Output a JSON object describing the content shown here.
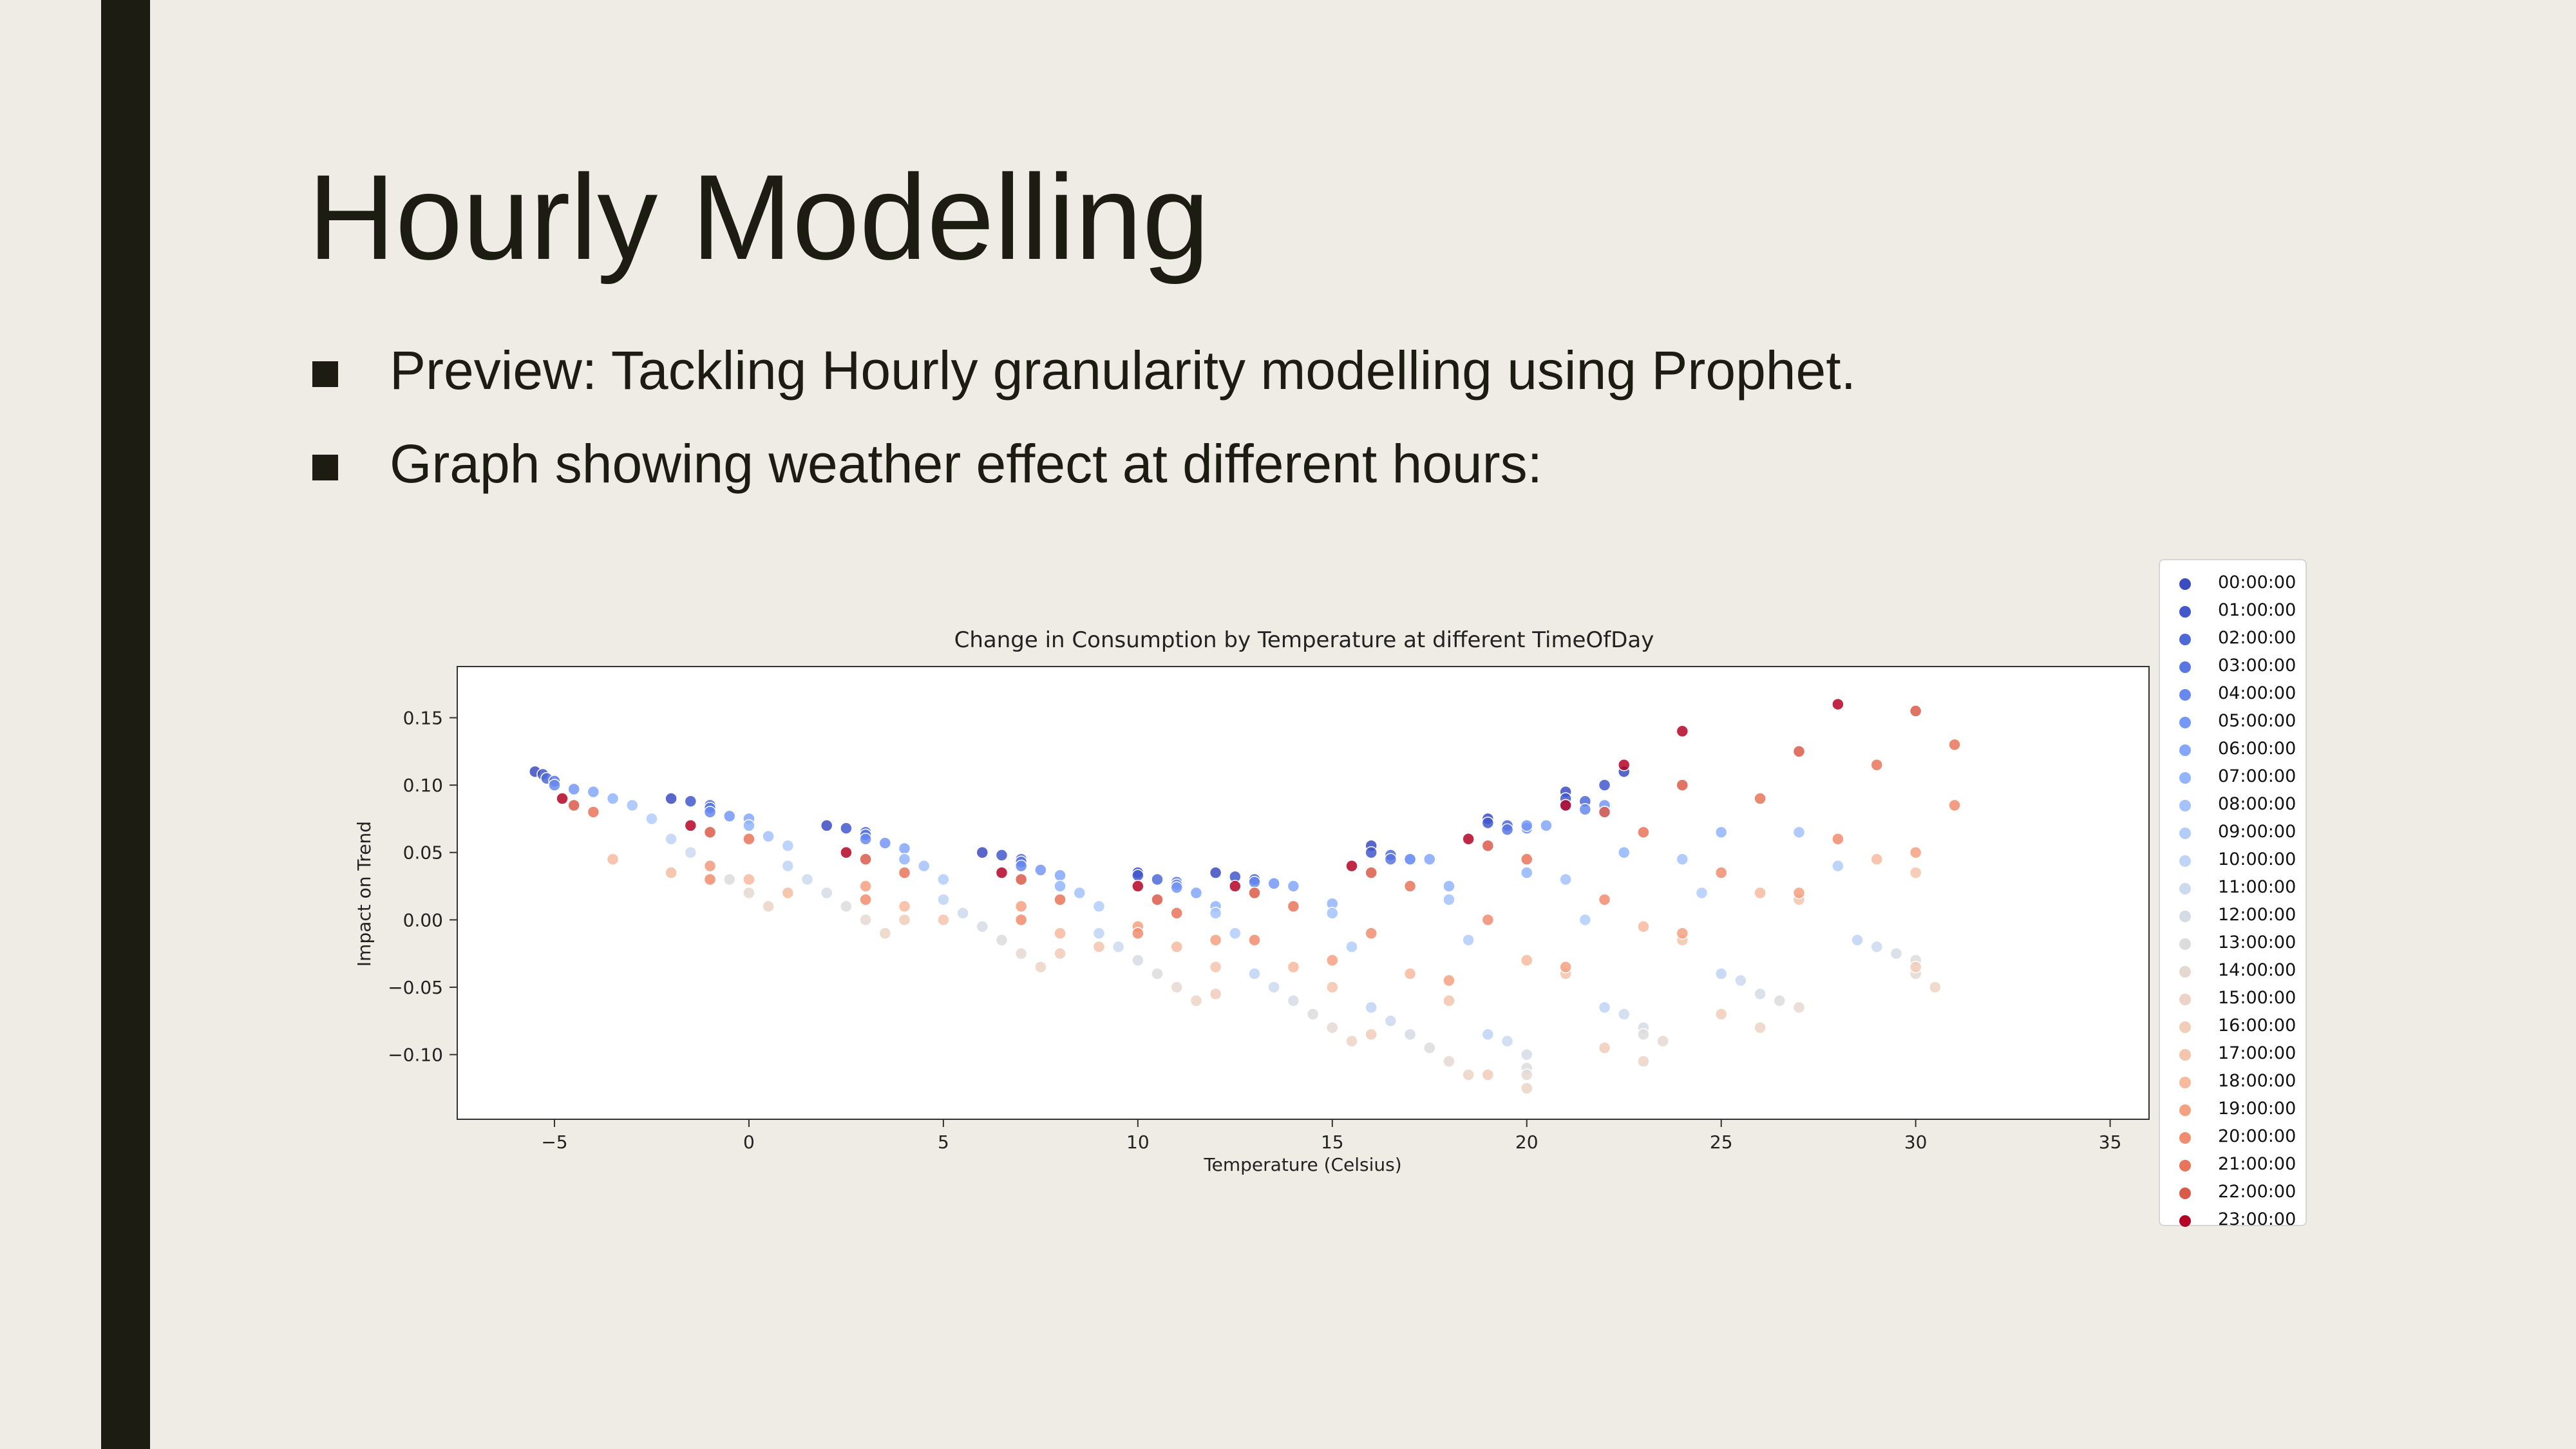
{
  "slide": {
    "title": "Hourly Modelling",
    "bullets": [
      "Preview: Tackling Hourly granularity modelling using Prophet.",
      "Graph showing weather effect at different hours:"
    ],
    "colors": {
      "background": "#EEECE4",
      "accent_bar": "#1C1C12",
      "text": "#1C1C12"
    }
  },
  "chart_data": {
    "type": "scatter",
    "title": "Change in Consumption by Temperature at different TimeOfDay",
    "xlabel": "Temperature (Celsius)",
    "ylabel": "Impact on Trend",
    "xlim": [
      -7.5,
      36
    ],
    "ylim": [
      -0.148,
      0.188
    ],
    "xticks": [
      -5,
      0,
      5,
      10,
      15,
      20,
      25,
      30,
      35
    ],
    "xtick_labels": [
      "−5",
      "0",
      "5",
      "10",
      "15",
      "20",
      "25",
      "30",
      "35"
    ],
    "yticks": [
      -0.1,
      -0.05,
      0.0,
      0.05,
      0.1,
      0.15
    ],
    "ytick_labels": [
      "−0.10",
      "−0.05",
      "0.00",
      "0.05",
      "0.10",
      "0.15"
    ],
    "grid": false,
    "legend_position": "outside-right",
    "series": [
      {
        "name": "00:00:00",
        "color": "#3B4CC0",
        "x": [
          -5.5,
          -2,
          2,
          6,
          10,
          12,
          16,
          19,
          21,
          22.5
        ],
        "y": [
          0.11,
          0.09,
          0.07,
          0.05,
          0.035,
          0.035,
          0.055,
          0.075,
          0.095,
          0.11
        ]
      },
      {
        "name": "01:00:00",
        "color": "#4358CB",
        "x": [
          -5.3,
          -1.5,
          2.5,
          6.5,
          10,
          12.5,
          16,
          19,
          21,
          22
        ],
        "y": [
          0.108,
          0.088,
          0.068,
          0.048,
          0.033,
          0.032,
          0.05,
          0.072,
          0.09,
          0.1
        ]
      },
      {
        "name": "02:00:00",
        "color": "#4E68D8",
        "x": [
          -5.2,
          -1,
          3,
          7,
          10.5,
          13,
          16.5,
          19.5,
          21.5
        ],
        "y": [
          0.105,
          0.085,
          0.065,
          0.045,
          0.03,
          0.03,
          0.048,
          0.07,
          0.088
        ]
      },
      {
        "name": "03:00:00",
        "color": "#5977E3",
        "x": [
          -5,
          -1,
          3,
          7,
          11,
          13,
          16.5,
          19.5,
          21
        ],
        "y": [
          0.103,
          0.083,
          0.063,
          0.043,
          0.028,
          0.03,
          0.045,
          0.067,
          0.085
        ]
      },
      {
        "name": "04:00:00",
        "color": "#6788EE",
        "x": [
          -5,
          -1,
          3,
          7,
          11,
          13,
          17,
          20,
          21.5
        ],
        "y": [
          0.1,
          0.08,
          0.06,
          0.04,
          0.026,
          0.028,
          0.045,
          0.068,
          0.082
        ]
      },
      {
        "name": "05:00:00",
        "color": "#7597F6",
        "x": [
          -4.5,
          -0.5,
          3.5,
          7.5,
          11,
          13.5,
          17,
          20,
          22
        ],
        "y": [
          0.097,
          0.077,
          0.057,
          0.037,
          0.024,
          0.027,
          0.045,
          0.07,
          0.085
        ]
      },
      {
        "name": "06:00:00",
        "color": "#84A7FC",
        "x": [
          -4,
          0,
          4,
          8,
          11.5,
          14,
          17.5,
          20.5,
          22
        ],
        "y": [
          0.095,
          0.075,
          0.053,
          0.033,
          0.02,
          0.025,
          0.045,
          0.07,
          0.08
        ]
      },
      {
        "name": "07:00:00",
        "color": "#93B5FE",
        "x": [
          -3.5,
          0,
          4,
          8,
          12,
          15,
          18,
          20,
          22.5,
          25
        ],
        "y": [
          0.09,
          0.07,
          0.045,
          0.025,
          0.01,
          0.012,
          0.025,
          0.035,
          0.05,
          0.065
        ]
      },
      {
        "name": "08:00:00",
        "color": "#A3C2FE",
        "x": [
          -3,
          0.5,
          4.5,
          8.5,
          12,
          15,
          18,
          21,
          24,
          27
        ],
        "y": [
          0.085,
          0.062,
          0.04,
          0.02,
          0.005,
          0.005,
          0.015,
          0.03,
          0.045,
          0.065
        ]
      },
      {
        "name": "09:00:00",
        "color": "#B2CCFB",
        "x": [
          -2.5,
          1,
          5,
          9,
          12.5,
          15.5,
          18.5,
          21.5,
          24.5,
          28
        ],
        "y": [
          0.075,
          0.055,
          0.03,
          0.01,
          -0.01,
          -0.02,
          -0.015,
          0.0,
          0.02,
          0.04
        ]
      },
      {
        "name": "10:00:00",
        "color": "#C0D4F5",
        "x": [
          -2,
          1,
          5,
          9,
          13,
          16,
          19,
          22,
          25,
          28.5
        ],
        "y": [
          0.06,
          0.04,
          0.015,
          -0.01,
          -0.04,
          -0.065,
          -0.085,
          -0.065,
          -0.04,
          -0.015
        ]
      },
      {
        "name": "11:00:00",
        "color": "#CCD9EE",
        "x": [
          -1.5,
          1.5,
          5.5,
          9.5,
          13.5,
          16.5,
          19.5,
          22.5,
          25.5,
          29
        ],
        "y": [
          0.05,
          0.03,
          0.005,
          -0.02,
          -0.05,
          -0.075,
          -0.09,
          -0.07,
          -0.045,
          -0.02
        ]
      },
      {
        "name": "12:00:00",
        "color": "#D5DBE5",
        "x": [
          -1,
          2,
          6,
          10,
          14,
          17,
          20,
          23,
          26,
          29.5
        ],
        "y": [
          0.04,
          0.02,
          -0.005,
          -0.03,
          -0.06,
          -0.085,
          -0.1,
          -0.08,
          -0.055,
          -0.025
        ]
      },
      {
        "name": "13:00:00",
        "color": "#DDDCDC",
        "x": [
          -0.5,
          2.5,
          6.5,
          10.5,
          14.5,
          17.5,
          20,
          23,
          26.5,
          30
        ],
        "y": [
          0.03,
          0.01,
          -0.015,
          -0.04,
          -0.07,
          -0.095,
          -0.11,
          -0.085,
          -0.06,
          -0.03
        ]
      },
      {
        "name": "14:00:00",
        "color": "#E5D8D1",
        "x": [
          0,
          3,
          7,
          11,
          15,
          18,
          20,
          23.5,
          27,
          30
        ],
        "y": [
          0.02,
          0.0,
          -0.025,
          -0.05,
          -0.08,
          -0.105,
          -0.115,
          -0.09,
          -0.065,
          -0.04
        ]
      },
      {
        "name": "15:00:00",
        "color": "#ECD3C5",
        "x": [
          0.5,
          3.5,
          7.5,
          11.5,
          15.5,
          18.5,
          20,
          23,
          26,
          30.5
        ],
        "y": [
          0.01,
          -0.01,
          -0.035,
          -0.06,
          -0.09,
          -0.115,
          -0.125,
          -0.105,
          -0.08,
          -0.05
        ]
      },
      {
        "name": "16:00:00",
        "color": "#F1CDBA",
        "x": [
          -2,
          1,
          4,
          8,
          12,
          16,
          19,
          22,
          25,
          30
        ],
        "y": [
          0.035,
          0.02,
          0.0,
          -0.025,
          -0.055,
          -0.085,
          -0.115,
          -0.095,
          -0.07,
          -0.035
        ]
      },
      {
        "name": "17:00:00",
        "color": "#F5C4AC",
        "x": [
          -2,
          1,
          5,
          9,
          12,
          15,
          18,
          21,
          24,
          27,
          30
        ],
        "y": [
          0.035,
          0.02,
          0.0,
          -0.02,
          -0.035,
          -0.05,
          -0.06,
          -0.04,
          -0.015,
          0.015,
          0.035
        ]
      },
      {
        "name": "18:00:00",
        "color": "#F7BA9F",
        "x": [
          -3.5,
          0,
          4,
          8,
          11,
          14,
          17,
          20,
          23,
          26,
          29
        ],
        "y": [
          0.045,
          0.03,
          0.01,
          -0.01,
          -0.02,
          -0.035,
          -0.04,
          -0.03,
          -0.005,
          0.02,
          0.045
        ]
      },
      {
        "name": "19:00:00",
        "color": "#F5A081",
        "x": [
          -1,
          3,
          7,
          10,
          12,
          15,
          18,
          21,
          24,
          27,
          30
        ],
        "y": [
          0.04,
          0.025,
          0.01,
          -0.005,
          -0.015,
          -0.03,
          -0.045,
          -0.035,
          -0.01,
          0.02,
          0.05
        ]
      },
      {
        "name": "20:00:00",
        "color": "#F18D6F",
        "x": [
          -1,
          3,
          7,
          10,
          13,
          16,
          19,
          22,
          25,
          28,
          31
        ],
        "y": [
          0.03,
          0.015,
          0.0,
          -0.01,
          -0.015,
          -0.01,
          0.0,
          0.015,
          0.035,
          0.06,
          0.085
        ]
      },
      {
        "name": "21:00:00",
        "color": "#E7745B",
        "x": [
          -4,
          0,
          4,
          8,
          11,
          14,
          17,
          20,
          23,
          26,
          29,
          31
        ],
        "y": [
          0.08,
          0.06,
          0.035,
          0.015,
          0.005,
          0.01,
          0.025,
          0.045,
          0.065,
          0.09,
          0.115,
          0.13
        ]
      },
      {
        "name": "22:00:00",
        "color": "#DA5A49",
        "x": [
          -4.5,
          -1,
          3,
          7,
          10.5,
          13,
          16,
          19,
          22,
          24,
          27,
          30
        ],
        "y": [
          0.085,
          0.065,
          0.045,
          0.03,
          0.015,
          0.02,
          0.035,
          0.055,
          0.08,
          0.1,
          0.125,
          0.155
        ]
      },
      {
        "name": "23:00:00",
        "color": "#B40426",
        "x": [
          -4.8,
          -1.5,
          2.5,
          6.5,
          10,
          12.5,
          15.5,
          18.5,
          21,
          22.5,
          24,
          28
        ],
        "y": [
          0.09,
          0.07,
          0.05,
          0.035,
          0.025,
          0.025,
          0.04,
          0.06,
          0.085,
          0.115,
          0.14,
          0.16
        ]
      }
    ]
  }
}
